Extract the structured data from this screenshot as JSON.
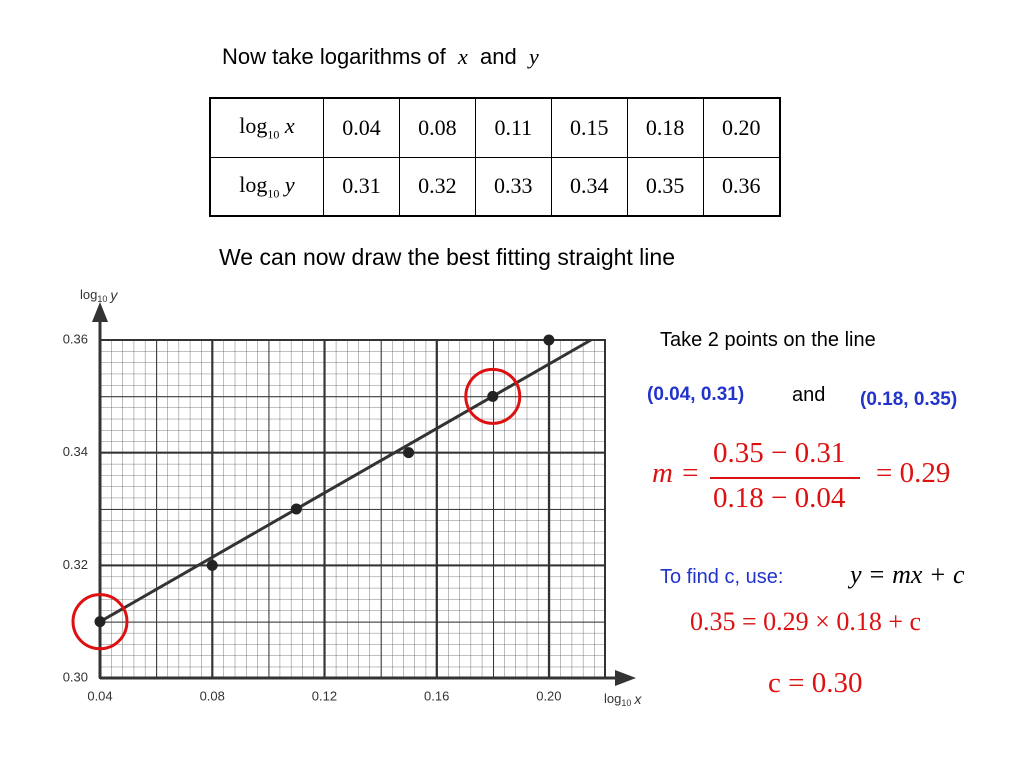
{
  "title": {
    "text": "Now take logarithms of",
    "x": "x",
    "and": "and",
    "y": "y"
  },
  "table": {
    "rows": [
      {
        "label": {
          "base": "log",
          "sub": "10",
          "var": "x"
        },
        "cells": [
          "0.04",
          "0.08",
          "0.11",
          "0.15",
          "0.18",
          "0.20"
        ]
      },
      {
        "label": {
          "base": "log",
          "sub": "10",
          "var": "y"
        },
        "cells": [
          "0.31",
          "0.32",
          "0.33",
          "0.34",
          "0.35",
          "0.36"
        ]
      }
    ]
  },
  "subtitle": "We can now draw the best fitting straight line",
  "chart_data": {
    "type": "scatter",
    "x": [
      0.04,
      0.08,
      0.11,
      0.15,
      0.18,
      0.2
    ],
    "values": [
      0.31,
      0.32,
      0.33,
      0.34,
      0.35,
      0.36
    ],
    "color": "#222222",
    "fit_line": {
      "x": [
        0.04,
        0.215
      ],
      "y": [
        0.31,
        0.36
      ],
      "color": "#333333"
    },
    "highlight": {
      "indices": [
        0,
        4
      ],
      "color": "#dd1111"
    },
    "xlim": [
      0.04,
      0.22
    ],
    "ylim": [
      0.3,
      0.36
    ],
    "xticks": [
      0.04,
      0.08,
      0.12,
      0.16,
      {
        "value": 0.2,
        "label": "0.20"
      }
    ],
    "yticks": [
      {
        "value": 0.3,
        "label": "0.30"
      },
      0.32,
      0.34,
      0.36
    ],
    "grid": true,
    "x_label": {
      "base": "log",
      "sub": "10",
      "var": "x"
    },
    "y_label": {
      "base": "log",
      "sub": "10",
      "var": "y"
    }
  },
  "notes": {
    "points_heading": "Take 2 points on the line",
    "point_a": "(0.04, 0.31)",
    "and": "and",
    "point_b": "(0.18, 0.35)",
    "gradient": {
      "lhs": "m =",
      "numerator": "0.35 − 0.31",
      "denominator": "0.18 − 0.04",
      "result": "=  0.29"
    },
    "find_c": "To find c, use:",
    "equation": "y = mx + c",
    "substitution": "0.35 = 0.29 × 0.18 + c",
    "answer": "c = 0.30"
  }
}
